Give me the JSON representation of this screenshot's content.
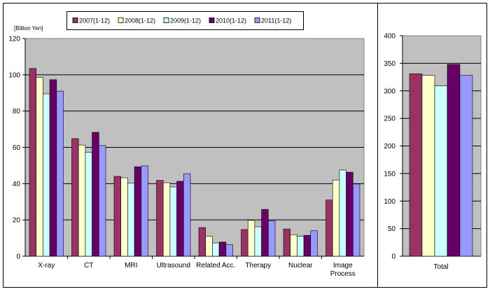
{
  "chart_data": [
    {
      "type": "bar",
      "ylabel": "[Billion Yen]",
      "ylim": [
        0,
        120
      ],
      "yticks": [
        0,
        20,
        40,
        60,
        80,
        100,
        120
      ],
      "grid": true,
      "legend_position": "top",
      "categories": [
        [
          "X-ray"
        ],
        [
          "CT"
        ],
        [
          "MRI"
        ],
        [
          "Ultrasound"
        ],
        [
          "Related Acc."
        ],
        [
          "Therapy"
        ],
        [
          "Nuclear"
        ],
        [
          "Image",
          "Process"
        ]
      ],
      "series": [
        {
          "name": "2007(1-12)",
          "color": "#993366",
          "values": [
            103.5,
            64.8,
            44.0,
            41.8,
            15.8,
            14.7,
            15.0,
            31.0
          ]
        },
        {
          "name": "2008(1-12)",
          "color": "#ffffcc",
          "values": [
            98.5,
            61.3,
            43.2,
            40.5,
            11.0,
            19.8,
            11.8,
            42.0
          ]
        },
        {
          "name": "2009(1-12)",
          "color": "#ccffff",
          "values": [
            89.5,
            57.3,
            40.3,
            38.2,
            7.3,
            16.2,
            11.0,
            47.5
          ]
        },
        {
          "name": "2010(1-12)",
          "color": "#660066",
          "values": [
            97.3,
            68.3,
            49.3,
            41.3,
            7.8,
            25.8,
            11.5,
            46.3
          ]
        },
        {
          "name": "2011(1-12)",
          "color": "#9999ff",
          "values": [
            91.0,
            61.0,
            49.8,
            45.5,
            6.5,
            19.5,
            14.0,
            39.8
          ]
        }
      ]
    },
    {
      "type": "bar",
      "ylim": [
        0,
        400
      ],
      "yticks": [
        0,
        50,
        100,
        150,
        200,
        250,
        300,
        350,
        400
      ],
      "grid": true,
      "categories": [
        [
          "Total"
        ]
      ],
      "series": [
        {
          "name": "2007(1-12)",
          "color": "#993366",
          "values": [
            331
          ]
        },
        {
          "name": "2008(1-12)",
          "color": "#ffffcc",
          "values": [
            328
          ]
        },
        {
          "name": "2009(1-12)",
          "color": "#ccffff",
          "values": [
            309
          ]
        },
        {
          "name": "2010(1-12)",
          "color": "#660066",
          "values": [
            348
          ]
        },
        {
          "name": "2011(1-12)",
          "color": "#9999ff",
          "values": [
            328
          ]
        }
      ]
    }
  ],
  "style": {
    "plot_background": "#c0c0c0",
    "gridline_color": "#000000",
    "bar_border": "#000000"
  }
}
